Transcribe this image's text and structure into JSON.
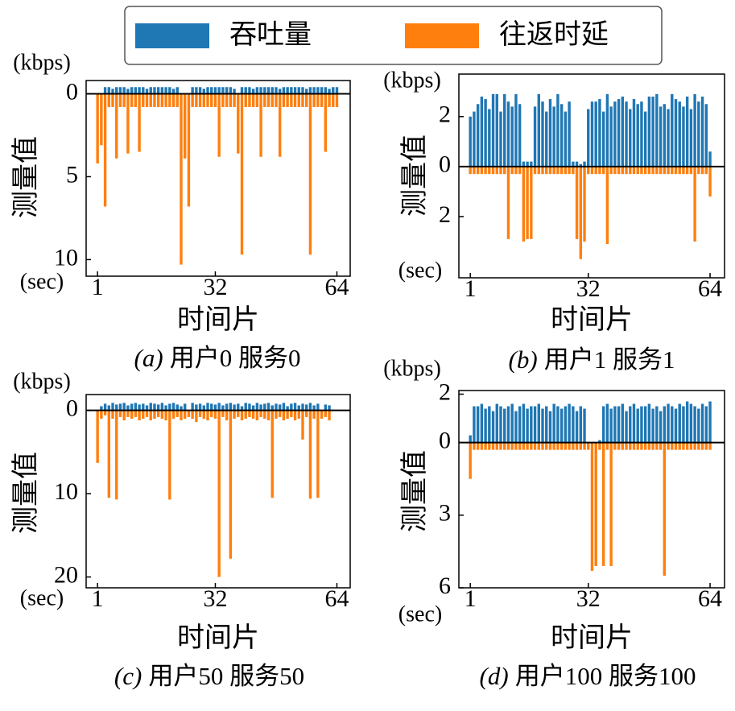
{
  "legend": {
    "entries": [
      {
        "name": "吞吐量",
        "color": "#1f77b4"
      },
      {
        "name": "往返时延",
        "color": "#ff7f0e"
      }
    ]
  },
  "chart_data": [
    {
      "type": "bar",
      "caption_label": "(a)",
      "caption": "用户0  服务0",
      "y_unit": "(kbps)",
      "x_unit": "(sec)",
      "ylabel": "测量值",
      "xlabel": "时间片",
      "xlim": [
        -2,
        67.5
      ],
      "xticks": [
        1,
        32,
        64
      ],
      "ylim": [
        -11.0,
        0.8
      ],
      "yticks": [
        0,
        {
          "value": -5,
          "label": "5"
        },
        {
          "value": -10,
          "label": "10"
        }
      ],
      "grid": false,
      "x": [
        1,
        2,
        3,
        4,
        5,
        6,
        7,
        8,
        9,
        10,
        11,
        12,
        13,
        14,
        15,
        16,
        17,
        18,
        19,
        20,
        21,
        22,
        23,
        24,
        25,
        26,
        27,
        28,
        29,
        30,
        31,
        32,
        33,
        34,
        35,
        36,
        37,
        38,
        39,
        40,
        41,
        42,
        43,
        44,
        45,
        46,
        47,
        48,
        49,
        50,
        51,
        52,
        53,
        54,
        55,
        56,
        57,
        58,
        59,
        60,
        61,
        62,
        63,
        64
      ],
      "series": [
        {
          "values": [
            0,
            0,
            0.4,
            0.4,
            0.3,
            0.4,
            0.4,
            0.4,
            0.3,
            0.4,
            0.4,
            0.4,
            0.4,
            0.3,
            0.4,
            0.4,
            0.4,
            0.4,
            0.4,
            0.4,
            0.3,
            0.4,
            0,
            0,
            0,
            0.4,
            0.4,
            0.4,
            0.3,
            0.4,
            0.4,
            0.4,
            0.4,
            0.4,
            0.4,
            0.4,
            0.3,
            0,
            0.4,
            0.4,
            0.4,
            0.3,
            0.4,
            0.4,
            0.4,
            0.4,
            0.4,
            0.4,
            0.3,
            0.4,
            0.4,
            0.4,
            0.4,
            0.4,
            0.4,
            0.3,
            0.4,
            0.4,
            0.4,
            0.4,
            0.4,
            0.3,
            0.4,
            0.4
          ]
        },
        {
          "values": [
            -4.2,
            -3.1,
            -6.8,
            -0.8,
            -0.8,
            -3.9,
            -0.8,
            -0.8,
            -3.6,
            -0.8,
            -0.8,
            -3.5,
            -0.8,
            -0.8,
            -0.8,
            -0.8,
            -0.8,
            -0.8,
            -0.8,
            -0.8,
            -0.8,
            -0.8,
            -10.3,
            -3.9,
            -6.8,
            -0.8,
            -0.8,
            -0.8,
            -0.8,
            -0.8,
            -0.8,
            -0.8,
            -3.8,
            -0.8,
            -0.8,
            -0.8,
            -0.8,
            -3.6,
            -9.7,
            -0.8,
            -0.8,
            -0.8,
            -0.8,
            -3.8,
            -0.8,
            -0.8,
            -0.8,
            -0.8,
            -3.8,
            -0.8,
            -0.8,
            -0.8,
            -0.8,
            -0.8,
            -0.8,
            -0.8,
            -9.7,
            -0.8,
            -0.8,
            -0.8,
            -3.5,
            -0.8,
            -0.8,
            -0.8
          ]
        }
      ]
    },
    {
      "type": "bar",
      "caption_label": "(b)",
      "caption": "用户1  服务1",
      "y_unit": "(kbps)",
      "x_unit": "(sec)",
      "ylabel": "测量值",
      "xlabel": "时间片",
      "xlim": [
        -2,
        67.8
      ],
      "xticks": [
        1,
        32,
        64
      ],
      "ylim": [
        -4.45,
        3.7
      ],
      "yticks": [
        2,
        0,
        {
          "value": -2,
          "label": "2"
        }
      ],
      "grid": false,
      "x": [
        1,
        2,
        3,
        4,
        5,
        6,
        7,
        8,
        9,
        10,
        11,
        12,
        13,
        14,
        15,
        16,
        17,
        18,
        19,
        20,
        21,
        22,
        23,
        24,
        25,
        26,
        27,
        28,
        29,
        30,
        31,
        32,
        33,
        34,
        35,
        36,
        37,
        38,
        39,
        40,
        41,
        42,
        43,
        44,
        45,
        46,
        47,
        48,
        49,
        50,
        51,
        52,
        53,
        54,
        55,
        56,
        57,
        58,
        59,
        60,
        61,
        62,
        63,
        64
      ],
      "series": [
        {
          "values": [
            2.0,
            2.2,
            2.5,
            2.8,
            2.7,
            2.3,
            2.9,
            2.9,
            2.2,
            2.9,
            2.6,
            2.4,
            2.9,
            2.5,
            0.2,
            0.2,
            0.2,
            2.4,
            2.9,
            2.6,
            2.2,
            2.7,
            2.4,
            2.9,
            2.5,
            2.2,
            2.6,
            0.2,
            0.2,
            0.1,
            0.2,
            2.3,
            2.6,
            2.6,
            2.7,
            2.2,
            2.9,
            2.4,
            2.6,
            2.7,
            2.8,
            2.6,
            2.3,
            2.7,
            2.5,
            2.6,
            2.2,
            2.8,
            2.8,
            2.9,
            2.4,
            2.5,
            2.3,
            2.9,
            2.7,
            2.6,
            2.4,
            2.8,
            2.3,
            2.9,
            2.6,
            2.8,
            2.5,
            0.6
          ]
        },
        {
          "values": [
            -0.3,
            -0.3,
            -0.3,
            -0.3,
            -0.3,
            -0.3,
            -0.3,
            -0.3,
            -0.3,
            -0.3,
            -2.9,
            -0.3,
            -0.3,
            -0.3,
            -3.0,
            -2.9,
            -2.9,
            -0.3,
            -0.3,
            -0.3,
            -0.3,
            -0.3,
            -0.3,
            -0.3,
            -0.3,
            -0.3,
            -0.3,
            -0.3,
            -2.9,
            -3.7,
            -3.0,
            -0.3,
            -0.3,
            -0.3,
            -0.3,
            -0.3,
            -3.1,
            -0.3,
            -0.3,
            -0.3,
            -0.3,
            -0.3,
            -0.3,
            -0.3,
            -0.3,
            -0.3,
            -0.3,
            -0.3,
            -0.3,
            -0.3,
            -0.3,
            -0.3,
            -0.3,
            -0.3,
            -0.3,
            -0.3,
            -0.3,
            -0.3,
            -0.3,
            -3.0,
            -0.3,
            -0.3,
            -0.3,
            -1.2
          ]
        }
      ]
    },
    {
      "type": "bar",
      "caption_label": "(c)",
      "caption": "用户50  服务50",
      "y_unit": "(kbps)",
      "x_unit": "(sec)",
      "ylabel": "测量值",
      "xlabel": "时间片",
      "xlim": [
        -2,
        67.5
      ],
      "xticks": [
        1,
        32,
        64
      ],
      "ylim": [
        -21.3,
        1.9
      ],
      "yticks": [
        0,
        {
          "value": -10,
          "label": "10"
        },
        {
          "value": -20,
          "label": "20"
        }
      ],
      "grid": false,
      "x": [
        1,
        2,
        3,
        4,
        5,
        6,
        7,
        8,
        9,
        10,
        11,
        12,
        13,
        14,
        15,
        16,
        17,
        18,
        19,
        20,
        21,
        22,
        23,
        24,
        25,
        26,
        27,
        28,
        29,
        30,
        31,
        32,
        33,
        34,
        35,
        36,
        37,
        38,
        39,
        40,
        41,
        42,
        43,
        44,
        45,
        46,
        47,
        48,
        49,
        50,
        51,
        52,
        53,
        54,
        55,
        56,
        57,
        58,
        59,
        60,
        61,
        62,
        63,
        64
      ],
      "series": [
        {
          "values": [
            0,
            0.5,
            0.8,
            0.6,
            0.9,
            0.7,
            0.8,
            0.9,
            0.6,
            0.8,
            0.9,
            0.7,
            0.8,
            0.6,
            0.9,
            0.8,
            0.7,
            0.9,
            0.6,
            0.8,
            0.9,
            0.7,
            0.5,
            0.8,
            0,
            0.9,
            0.7,
            0.8,
            0.6,
            0.9,
            0.8,
            0.7,
            0.9,
            0.6,
            0.8,
            0.9,
            0.7,
            0.8,
            0.5,
            0.9,
            0.8,
            0.6,
            0.9,
            0.7,
            0.8,
            0.9,
            0.6,
            0.8,
            0.7,
            0.9,
            0.5,
            0.8,
            0.9,
            0.6,
            0.8,
            0.7,
            0.9,
            0.6,
            0.8,
            0,
            0.7,
            0.6,
            0,
            0
          ]
        },
        {
          "values": [
            -6.3,
            -1.0,
            -0.6,
            -10.5,
            -1.0,
            -10.7,
            -0.8,
            -1.2,
            -0.8,
            -1.0,
            -0.8,
            -1.2,
            -1.0,
            -0.8,
            -1.2,
            -1.0,
            -0.8,
            -1.0,
            -1.2,
            -10.7,
            -1.0,
            -0.8,
            -1.2,
            -1.0,
            -0.8,
            -1.0,
            -1.4,
            -0.8,
            -1.0,
            -1.2,
            -0.8,
            -1.0,
            -20.0,
            -0.8,
            -1.2,
            -17.8,
            -1.0,
            -0.8,
            -1.2,
            -1.0,
            -0.8,
            -1.0,
            -1.2,
            -0.8,
            -1.0,
            -1.2,
            -10.5,
            -1.0,
            -0.8,
            -1.2,
            -1.0,
            -0.8,
            -1.2,
            -1.0,
            -3.5,
            -0.8,
            -10.6,
            -1.0,
            -10.5,
            -1.0,
            -0.8,
            -1.2,
            0,
            0
          ]
        }
      ]
    },
    {
      "type": "bar",
      "caption_label": "(d)",
      "caption": "用户100  服务100",
      "y_unit": "(kbps)",
      "x_unit": "(sec)",
      "ylabel": "测量值",
      "xlabel": "时间片",
      "xlim": [
        -2,
        67.8
      ],
      "xticks": [
        1,
        32,
        64
      ],
      "ylim": [
        -6.0,
        2.15
      ],
      "yticks": [
        2,
        0,
        {
          "value": -3,
          "label": "3"
        },
        {
          "value": -6,
          "label": "6"
        }
      ],
      "grid": false,
      "x": [
        1,
        2,
        3,
        4,
        5,
        6,
        7,
        8,
        9,
        10,
        11,
        12,
        13,
        14,
        15,
        16,
        17,
        18,
        19,
        20,
        21,
        22,
        23,
        24,
        25,
        26,
        27,
        28,
        29,
        30,
        31,
        32,
        33,
        34,
        35,
        36,
        37,
        38,
        39,
        40,
        41,
        42,
        43,
        44,
        45,
        46,
        47,
        48,
        49,
        50,
        51,
        52,
        53,
        54,
        55,
        56,
        57,
        58,
        59,
        60,
        61,
        62,
        63,
        64
      ],
      "series": [
        {
          "values": [
            0.3,
            1.5,
            1.5,
            1.6,
            1.4,
            1.5,
            1.3,
            1.6,
            1.5,
            1.4,
            1.5,
            1.6,
            1.3,
            1.5,
            1.6,
            1.4,
            1.5,
            1.5,
            1.6,
            1.4,
            1.5,
            1.3,
            1.6,
            1.5,
            1.4,
            1.5,
            1.6,
            1.5,
            1.3,
            1.5,
            1.4,
            0,
            0,
            0,
            0.1,
            1.5,
            1.6,
            1.4,
            1.5,
            1.5,
            1.6,
            1.3,
            1.5,
            1.6,
            1.4,
            1.5,
            1.5,
            1.6,
            1.4,
            1.5,
            1.3,
            1.5,
            1.6,
            1.5,
            1.4,
            1.6,
            1.5,
            1.7,
            1.6,
            1.5,
            1.4,
            1.6,
            1.5,
            1.7
          ]
        },
        {
          "values": [
            -1.5,
            -0.3,
            -0.3,
            -0.3,
            -0.3,
            -0.3,
            -0.3,
            -0.3,
            -0.3,
            -0.3,
            -0.3,
            -0.3,
            -0.3,
            -0.3,
            -0.3,
            -0.3,
            -0.3,
            -0.3,
            -0.3,
            -0.3,
            -0.3,
            -0.3,
            -0.3,
            -0.3,
            -0.3,
            -0.3,
            -0.3,
            -0.3,
            -0.3,
            -0.3,
            -0.3,
            -0.3,
            -5.3,
            -5.1,
            -0.3,
            -5.1,
            -0.3,
            -5.1,
            -0.3,
            -0.3,
            -0.3,
            -0.3,
            -0.3,
            -0.3,
            -0.3,
            -0.3,
            -0.3,
            -0.3,
            -0.3,
            -0.3,
            -0.3,
            -5.5,
            -0.3,
            -0.3,
            -0.3,
            -0.3,
            -0.3,
            -0.3,
            -0.3,
            -0.3,
            -0.3,
            -0.3,
            -0.3,
            -0.3
          ]
        }
      ]
    }
  ]
}
